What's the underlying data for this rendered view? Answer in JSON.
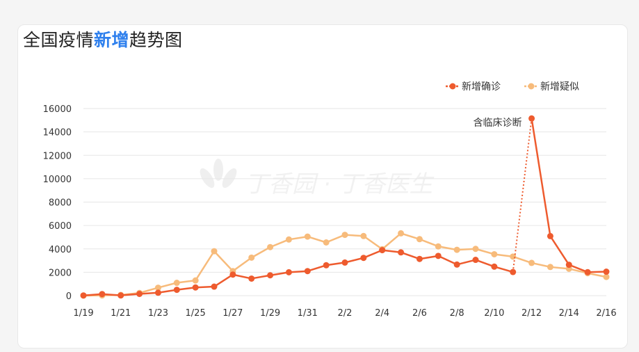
{
  "title": {
    "prefix": "全国疫情",
    "highlight": "新增",
    "suffix": "趋势图"
  },
  "watermark": "丁香园 · 丁香医生",
  "colors": {
    "confirmed": "#ee5b2e",
    "suspected": "#f7bb7b",
    "highlight": "#2f80ed",
    "grid": "#e6e6e6"
  },
  "chart_data": {
    "type": "line",
    "x": [
      "1/19",
      "1/20",
      "1/21",
      "1/22",
      "1/23",
      "1/24",
      "1/25",
      "1/26",
      "1/27",
      "1/28",
      "1/29",
      "1/30",
      "1/31",
      "2/1",
      "2/2",
      "2/3",
      "2/4",
      "2/5",
      "2/6",
      "2/7",
      "2/8",
      "2/9",
      "2/10",
      "2/11",
      "2/12",
      "2/13",
      "2/14",
      "2/15",
      "2/16"
    ],
    "xticks": [
      "1/19",
      "1/21",
      "1/23",
      "1/25",
      "1/27",
      "1/29",
      "1/31",
      "2/2",
      "2/4",
      "2/6",
      "2/8",
      "2/10",
      "2/12",
      "2/14",
      "2/16"
    ],
    "yticks": [
      0,
      2000,
      4000,
      6000,
      8000,
      10000,
      12000,
      14000,
      16000
    ],
    "ylim": [
      0,
      16000
    ],
    "grid": true,
    "legend_position": "top-right",
    "series": [
      {
        "name": "新增确诊",
        "color": "#ee5b2e",
        "values": [
          17,
          136,
          19,
          150,
          250,
          500,
          700,
          770,
          1800,
          1460,
          1740,
          2000,
          2100,
          2600,
          2830,
          3230,
          3890,
          3700,
          3140,
          3400,
          2660,
          3060,
          2480,
          2020,
          15150,
          5090,
          2640,
          2010,
          2050
        ]
      },
      {
        "name": "新增疑似",
        "color": "#f7bb7b",
        "values": [
          5,
          20,
          60,
          230,
          680,
          1100,
          1300,
          3800,
          2100,
          3250,
          4150,
          4800,
          5050,
          4550,
          5200,
          5100,
          3970,
          5330,
          4830,
          4210,
          3920,
          4000,
          3540,
          3340,
          2800,
          2450,
          2300,
          1920,
          1600
        ]
      }
    ],
    "annotation": {
      "text": "含临床诊断",
      "x": "2/12",
      "series": "新增确诊"
    }
  }
}
